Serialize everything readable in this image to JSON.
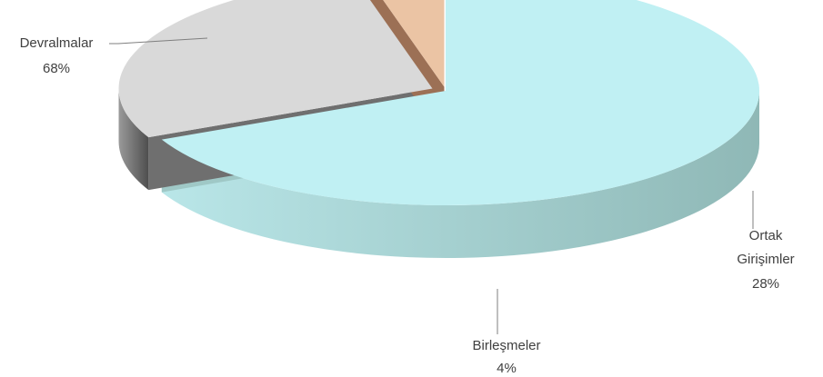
{
  "chart_data": {
    "type": "pie",
    "style": "3d-exploded",
    "title": "",
    "legend": "none",
    "slices": [
      {
        "label": "Devralmalar",
        "value": 68,
        "value_label": "68%",
        "color": "#c0f0f3",
        "side_color": "#9fc8c6"
      },
      {
        "label": "Ortak Girişimler",
        "label_lines": [
          "Ortak",
          "Girişimler"
        ],
        "value": 28,
        "value_label": "28%",
        "color": "#d9d9d9",
        "side_color": "#6f6f6f"
      },
      {
        "label": "Birleşmeler",
        "value": 4,
        "value_label": "4%",
        "color": "#ebc4a4",
        "side_color": "#9c7055"
      }
    ]
  }
}
